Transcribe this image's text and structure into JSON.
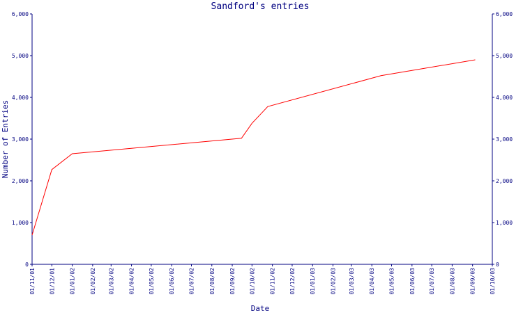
{
  "chart_data": {
    "type": "line",
    "title": "Sandford's entries",
    "xlabel": "Date",
    "ylabel": "Number of Entries",
    "colors": {
      "axis": "#000080",
      "text": "#000080",
      "series": "#ff0000",
      "background": "#ffffff"
    },
    "ylim": [
      0,
      6000
    ],
    "yticks": [
      0,
      1000,
      2000,
      3000,
      4000,
      5000,
      6000
    ],
    "ytick_labels": [
      "0",
      "1,000",
      "2,000",
      "3,000",
      "4,000",
      "5,000",
      "6,000"
    ],
    "xlim": [
      "2001-11-01",
      "2003-10-01"
    ],
    "xticks": [
      "2001-11-01",
      "2001-12-01",
      "2002-01-01",
      "2002-02-01",
      "2002-03-01",
      "2002-04-01",
      "2002-05-01",
      "2002-06-01",
      "2002-07-01",
      "2002-08-01",
      "2002-09-01",
      "2002-10-01",
      "2002-11-01",
      "2002-12-01",
      "2003-01-01",
      "2003-02-01",
      "2003-03-01",
      "2003-04-01",
      "2003-05-01",
      "2003-06-01",
      "2003-07-01",
      "2003-08-01",
      "2003-09-01",
      "2003-10-01"
    ],
    "xtick_labels": [
      "01/11/01",
      "01/12/01",
      "01/01/02",
      "01/02/02",
      "01/03/02",
      "01/04/02",
      "01/05/02",
      "01/06/02",
      "01/07/02",
      "01/08/02",
      "01/09/02",
      "01/10/02",
      "01/11/02",
      "01/12/02",
      "01/01/03",
      "01/02/03",
      "01/03/03",
      "01/04/03",
      "01/05/03",
      "01/06/03",
      "01/07/03",
      "01/08/03",
      "01/09/03",
      "01/10/03"
    ],
    "grid": false,
    "right_axis": true,
    "series": [
      {
        "x": [
          "2001-11-01",
          "2001-12-01",
          "2002-01-01",
          "2002-09-15",
          "2002-10-01",
          "2002-10-25",
          "2003-04-15",
          "2003-09-05"
        ],
        "values": [
          700,
          2270,
          2650,
          3020,
          3380,
          3780,
          4520,
          4900
        ]
      }
    ]
  }
}
